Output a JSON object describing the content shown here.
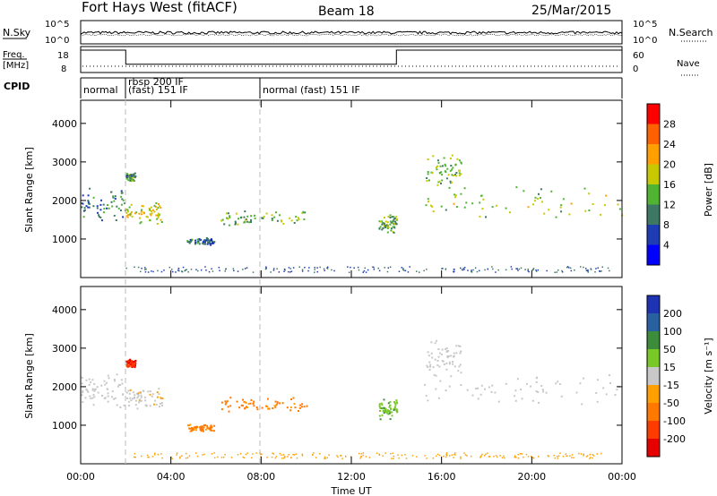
{
  "header": {
    "radar": "Fort Hays West (fitACF)",
    "beam": "Beam 18",
    "date": "25/Mar/2015"
  },
  "noise_panel": {
    "left_label": "N.Sky",
    "right_label": "N.Search",
    "ticks_left": [
      "10^5",
      "10^0"
    ],
    "ticks_right": [
      "10^5",
      "10^0"
    ]
  },
  "freq_panel": {
    "label_line1": "Freq.",
    "label_line2": "[MHz]",
    "ticks_left": [
      "18",
      "8"
    ],
    "ticks_right": [
      "60",
      "0"
    ],
    "right_label": "Nave",
    "freq_profile": [
      [
        0,
        18.0
      ],
      [
        2.0,
        18.0
      ],
      [
        2.0,
        10.8
      ],
      [
        14.0,
        10.8
      ],
      [
        14.0,
        18.0
      ],
      [
        24,
        18.0
      ]
    ]
  },
  "cpid": {
    "label": "CPID",
    "segments": [
      "normal",
      "rbsp 200 IF",
      "(fast) 151 IF",
      "normal (fast) 151 IF"
    ]
  },
  "power_panel": {
    "ylabel": "Slant Range [km]",
    "yticks": [
      1000,
      2000,
      3000,
      4000
    ],
    "colorbar_label": "Power [dB]",
    "colorbar_ticks": [
      "4",
      "8",
      "12",
      "16",
      "20",
      "24",
      "28"
    ],
    "colors": [
      "#0000ff",
      "#1e3cb4",
      "#3c7864",
      "#50b432",
      "#c8c800",
      "#ffa000",
      "#ff6000",
      "#ff0000"
    ]
  },
  "velocity_panel": {
    "ylabel": "Slant Range [km]",
    "yticks": [
      1000,
      2000,
      3000,
      4000
    ],
    "colorbar_label": "Velocity [m s⁻¹]",
    "colorbar_ticks": [
      "200",
      "100",
      "50",
      "15",
      "-15",
      "-50",
      "-100",
      "-200"
    ],
    "colors": [
      "#1e32b4",
      "#2860a0",
      "#3c8c3c",
      "#78c828",
      "#c8c8c8",
      "#ffa000",
      "#ff7800",
      "#ff3c00",
      "#e60000"
    ]
  },
  "x_axis": {
    "label": "Time UT",
    "ticks": [
      "00:00",
      "04:00",
      "08:00",
      "12:00",
      "16:00",
      "20:00",
      "00:00"
    ]
  },
  "chart_data": {
    "type": "heatmap",
    "x_unit": "hours UT",
    "xlim": [
      0,
      24
    ],
    "ylim": [
      0,
      4600
    ],
    "echo_regions": [
      {
        "t0": 0.0,
        "t1": 1.95,
        "r0": 1450,
        "r1": 2400,
        "power": 10,
        "velocity": 0
      },
      {
        "t0": 2.0,
        "t1": 3.6,
        "r0": 1400,
        "r1": 2000,
        "power": 18,
        "velocity": -5
      },
      {
        "t0": 2.0,
        "t1": 2.4,
        "r0": 2500,
        "r1": 2750,
        "power": 12,
        "velocity": -200
      },
      {
        "t0": 6.2,
        "t1": 10.0,
        "r0": 1350,
        "r1": 1750,
        "power": 14,
        "velocity": -60
      },
      {
        "t0": 4.7,
        "t1": 5.9,
        "r0": 850,
        "r1": 1050,
        "power": 8,
        "velocity": -60
      },
      {
        "t0": 13.2,
        "t1": 14.0,
        "r0": 1150,
        "r1": 1700,
        "power": 14,
        "velocity": 40
      },
      {
        "t0": 15.2,
        "t1": 24.0,
        "r0": 1500,
        "r1": 2400,
        "power": 16,
        "velocity": 0
      },
      {
        "t0": 15.3,
        "t1": 17.0,
        "r0": 2200,
        "r1": 3300,
        "power": 14,
        "velocity": 0
      }
    ]
  }
}
